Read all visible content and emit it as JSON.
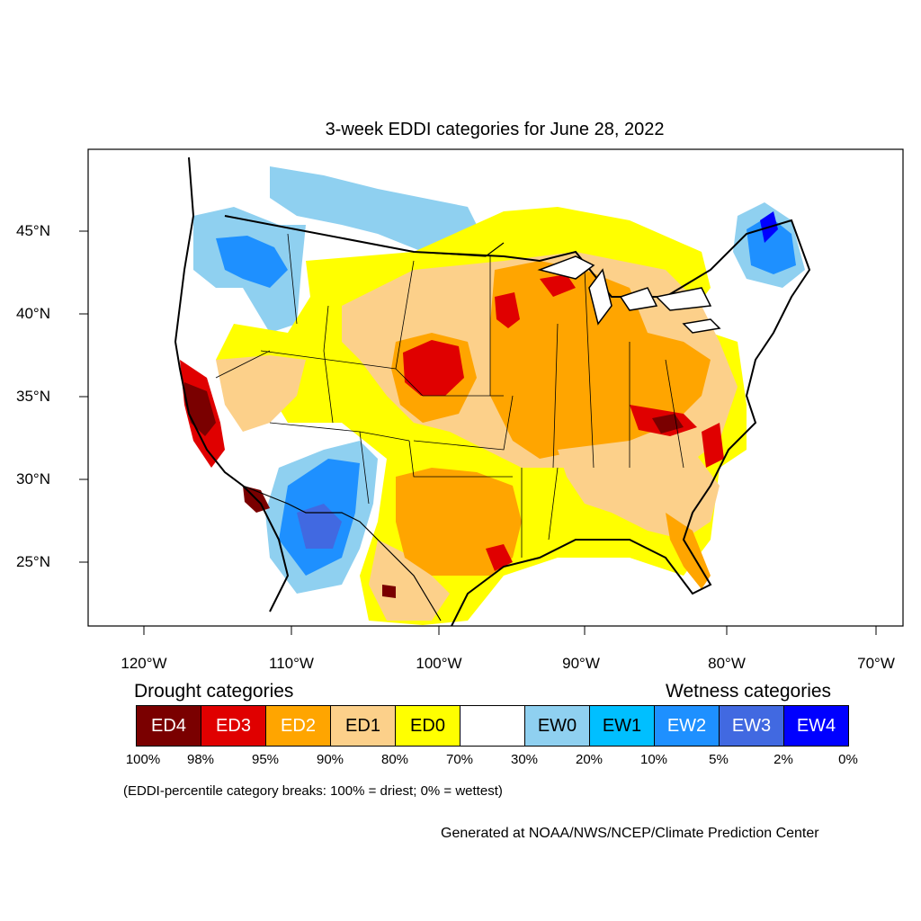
{
  "title": "3-week EDDI categories for June 28, 2022",
  "latitude_labels": [
    "45°N",
    "40°N",
    "35°N",
    "30°N",
    "25°N"
  ],
  "longitude_labels": [
    "120°W",
    "110°W",
    "100°W",
    "90°W",
    "80°W",
    "70°W"
  ],
  "legend": {
    "drought_heading": "Drought categories",
    "wetness_heading": "Wetness categories",
    "categories": [
      {
        "label": "ED4",
        "color": "#7a0000",
        "text_color": "#ffffff"
      },
      {
        "label": "ED3",
        "color": "#e00000",
        "text_color": "#ffffff"
      },
      {
        "label": "ED2",
        "color": "#ffa500",
        "text_color": "#ffffff"
      },
      {
        "label": "ED1",
        "color": "#fcd08a",
        "text_color": "#000000"
      },
      {
        "label": "ED0",
        "color": "#ffff00",
        "text_color": "#000000"
      },
      {
        "label": "",
        "color": "#ffffff",
        "text_color": "#000000"
      },
      {
        "label": "EW0",
        "color": "#8fd0f0",
        "text_color": "#000000"
      },
      {
        "label": "EW1",
        "color": "#00bfff",
        "text_color": "#000000"
      },
      {
        "label": "EW2",
        "color": "#1e90ff",
        "text_color": "#ffffff"
      },
      {
        "label": "EW3",
        "color": "#4169e1",
        "text_color": "#ffffff"
      },
      {
        "label": "EW4",
        "color": "#0000ff",
        "text_color": "#ffffff"
      }
    ],
    "breaks": [
      "100%",
      "98%",
      "95%",
      "90%",
      "80%",
      "70%",
      "30%",
      "20%",
      "10%",
      "5%",
      "2%",
      "0%"
    ]
  },
  "note": "(EDDI-percentile category breaks: 100% = driest; 0% = wettest)",
  "credit": "Generated at NOAA/NWS/NCEP/Climate Prediction Center"
}
